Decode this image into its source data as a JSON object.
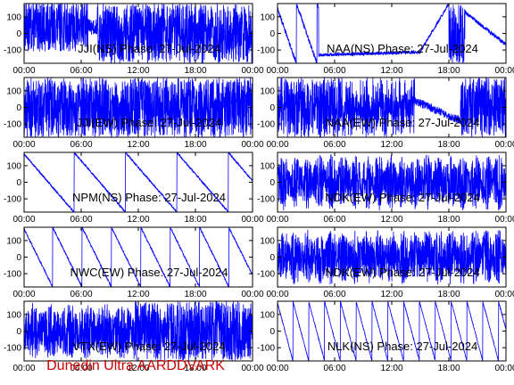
{
  "footer": "Dunedin Ultra AARDDVARK",
  "colors": {
    "trace": "#0000ff",
    "axis": "#000000",
    "background": "#ffffff",
    "footer": "#cc0000"
  },
  "chart_data": [
    {
      "type": "line",
      "title": "JJI(NS) Phase: 27-Jul-2024",
      "pattern": "dense_late",
      "x_ticks": [
        "00:00",
        "06:00",
        "12:00",
        "18:00",
        "00:00"
      ],
      "y_ticks": [
        100,
        0,
        -100
      ],
      "ylim": [
        -180,
        180
      ]
    },
    {
      "type": "line",
      "title": "NAA(NS) Phase: 27-Jul-2024",
      "pattern": "sweep_mid",
      "x_ticks": [
        "00:00",
        "06:00",
        "12:00",
        "18:00",
        "00:00"
      ],
      "y_ticks": [
        100,
        0,
        -100
      ],
      "ylim": [
        -180,
        180
      ]
    },
    {
      "type": "line",
      "title": "JJI(EW) Phase: 27-Jul-2024",
      "pattern": "dense_full",
      "x_ticks": [
        "00:00",
        "06:00",
        "12:00",
        "18:00",
        "00:00"
      ],
      "y_ticks": [
        100,
        0,
        -100
      ],
      "ylim": [
        -180,
        180
      ]
    },
    {
      "type": "line",
      "title": "NAA(EW) Phase: 27-Jul-2024",
      "pattern": "dense_right",
      "x_ticks": [
        "00:00",
        "06:00",
        "12:00",
        "18:00",
        "00:00"
      ],
      "y_ticks": [
        100,
        0,
        -100
      ],
      "ylim": [
        -180,
        180
      ]
    },
    {
      "type": "line",
      "title": "NPM(NS) Phase: 27-Jul-2024",
      "pattern": "ramps_slow",
      "x_ticks": [
        "00:00",
        "06:00",
        "12:00",
        "18:00",
        "00:00"
      ],
      "y_ticks": [
        100,
        0,
        -100
      ],
      "ylim": [
        -180,
        180
      ]
    },
    {
      "type": "line",
      "title": "NDK(EW) Phase: 27-Jul-2024",
      "pattern": "noisy_full",
      "x_ticks": [
        "00:00",
        "06:00",
        "12:00",
        "18:00",
        "00:00"
      ],
      "y_ticks": [
        100,
        0,
        -100
      ],
      "ylim": [
        -180,
        180
      ]
    },
    {
      "type": "line",
      "title": "NWC(EW) Phase: 27-Jul-2024",
      "pattern": "ramps_med",
      "x_ticks": [
        "00:00",
        "06:00",
        "12:00",
        "18:00",
        "00:00"
      ],
      "y_ticks": [
        100,
        0,
        -100
      ],
      "ylim": [
        -180,
        180
      ]
    },
    {
      "type": "line",
      "title": "NDK(EW) Phase: 27-Jul-2024",
      "pattern": "noisy_full",
      "x_ticks": [
        "00:00",
        "06:00",
        "12:00",
        "18:00",
        "00:00"
      ],
      "y_ticks": [
        100,
        0,
        -100
      ],
      "ylim": [
        -180,
        180
      ]
    },
    {
      "type": "line",
      "title": "VTX(EW) Phase: 27-Jul-2024",
      "pattern": "dense_half",
      "x_ticks": [
        "00:00",
        "06:00",
        "12:00",
        "18:00",
        "00:00"
      ],
      "y_ticks": [
        100,
        0,
        -100
      ],
      "ylim": [
        -180,
        180
      ]
    },
    {
      "type": "line",
      "title": "NLK(NS) Phase: 27-Jul-2024",
      "pattern": "ramps_fast",
      "x_ticks": [
        "00:00",
        "06:00",
        "12:00",
        "18:00",
        "00:00"
      ],
      "y_ticks": [
        100,
        0,
        -100
      ],
      "ylim": [
        -180,
        180
      ]
    }
  ]
}
